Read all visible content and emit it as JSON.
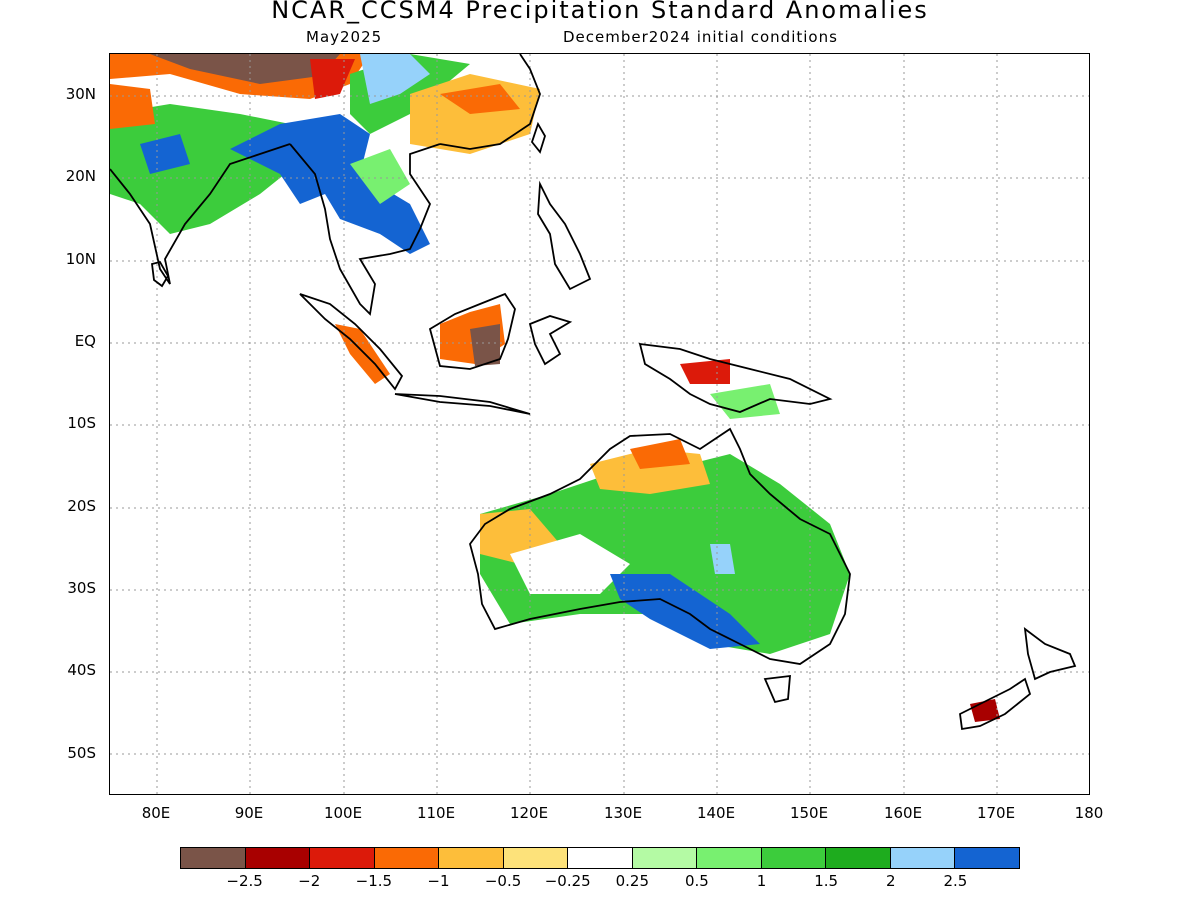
{
  "title": "NCAR_CCSM4 Precipitation Standard Anomalies",
  "target_month": "May2025",
  "init_conditions": "December2024 initial conditions",
  "map": {
    "lon_ticks": [
      "80E",
      "90E",
      "100E",
      "110E",
      "120E",
      "130E",
      "140E",
      "150E",
      "160E",
      "170E",
      "180"
    ],
    "lat_ticks": [
      "30N",
      "20N",
      "10N",
      "EQ",
      "10S",
      "20S",
      "30S",
      "40S",
      "50S"
    ],
    "lon_range": [
      75,
      180
    ],
    "lat_range": [
      -55,
      35
    ],
    "grid": "dotted"
  },
  "colorbar": {
    "labels": [
      "−2.5",
      "−2",
      "−1.5",
      "−1",
      "−0.5",
      "−0.25",
      "0.25",
      "0.5",
      "1",
      "1.5",
      "2",
      "2.5"
    ],
    "colors": [
      "#7a5448",
      "#a80000",
      "#dc1a0a",
      "#fa6a05",
      "#fdbe3a",
      "#fde27a",
      "#ffffff",
      "#b4faa4",
      "#78f070",
      "#3ccc3c",
      "#1eac1e",
      "#96d2fa",
      "#1464d2"
    ]
  }
}
